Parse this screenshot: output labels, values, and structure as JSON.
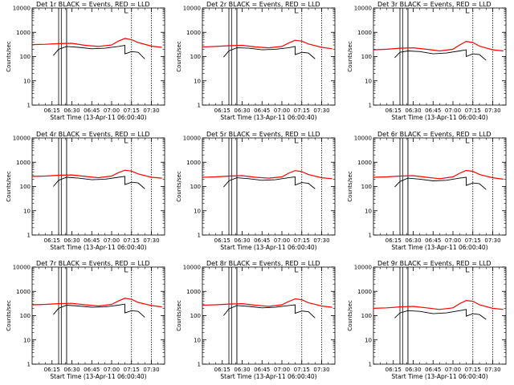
{
  "figure": {
    "background": "#ffffff",
    "events_color": "#000000",
    "lld_color": "#ff0000"
  },
  "chart_data": [
    {
      "type": "line",
      "title": "Det 1r BLACK = Events, RED = LLD",
      "xlabel": "Start Time (13-Apr-11 06:00:40)",
      "ylabel": "Counts/sec",
      "x_ticks": [
        "06:15",
        "06:30",
        "06:45",
        "07:00",
        "07:15",
        "07:30"
      ],
      "y_ticks": [
        "1",
        "10",
        "100",
        "1000",
        "10000"
      ],
      "x_range": [
        "06:00",
        "07:40"
      ],
      "ylim": [
        1,
        10000
      ],
      "y_scale": "log",
      "events_start": "06:16",
      "gap": [
        "06:20",
        "06:26"
      ],
      "events_step": "07:10",
      "markers": [
        "06:22",
        "06:26",
        "07:15",
        "07:30"
      ],
      "series": [
        {
          "name": "BLACK = Events",
          "x": [
            "06:16",
            "06:20",
            "06:26",
            "06:35",
            "06:45",
            "06:55",
            "07:05",
            "07:10",
            "07:10",
            "07:15",
            "07:20",
            "07:25"
          ],
          "values": [
            110,
            200,
            260,
            240,
            210,
            220,
            260,
            290,
            130,
            160,
            150,
            80
          ]
        },
        {
          "name": "RED = LLD",
          "x": [
            "06:00",
            "06:10",
            "06:20",
            "06:30",
            "06:40",
            "06:50",
            "07:00",
            "07:05",
            "07:10",
            "07:15",
            "07:20",
            "07:30",
            "07:38"
          ],
          "values": [
            310,
            320,
            340,
            350,
            290,
            260,
            300,
            430,
            560,
            500,
            380,
            270,
            240
          ]
        }
      ]
    },
    {
      "type": "line",
      "title": "Det 2r BLACK = Events, RED = LLD",
      "xlabel": "Start Time (13-Apr-11 06:00:40)",
      "ylabel": "Counts/sec",
      "x_ticks": [
        "06:15",
        "06:30",
        "06:45",
        "07:00",
        "07:15",
        "07:30"
      ],
      "y_ticks": [
        "1",
        "10",
        "100",
        "1000",
        "10000"
      ],
      "x_range": [
        "06:00",
        "07:40"
      ],
      "ylim": [
        1,
        10000
      ],
      "y_scale": "log",
      "events_start": "06:16",
      "gap": [
        "06:20",
        "06:26"
      ],
      "events_step": "07:10",
      "markers": [
        "06:22",
        "06:26",
        "07:15",
        "07:30"
      ],
      "series": [
        {
          "name": "BLACK = Events",
          "x": [
            "06:16",
            "06:20",
            "06:26",
            "06:35",
            "06:45",
            "06:55",
            "07:05",
            "07:10",
            "07:10",
            "07:15",
            "07:20",
            "07:25"
          ],
          "values": [
            95,
            170,
            230,
            220,
            190,
            200,
            230,
            260,
            120,
            150,
            140,
            80
          ]
        },
        {
          "name": "RED = LLD",
          "x": [
            "06:00",
            "06:10",
            "06:20",
            "06:30",
            "06:40",
            "06:50",
            "07:00",
            "07:05",
            "07:10",
            "07:15",
            "07:20",
            "07:30",
            "07:38"
          ],
          "values": [
            250,
            260,
            280,
            290,
            250,
            230,
            260,
            360,
            470,
            430,
            330,
            240,
            210
          ]
        }
      ]
    },
    {
      "type": "line",
      "title": "Det 3r BLACK = Events, RED = LLD",
      "xlabel": "Start Time (13-Apr-11 06:00:40)",
      "ylabel": "Counts/sec",
      "x_ticks": [
        "06:15",
        "06:30",
        "06:45",
        "07:00",
        "07:15",
        "07:30"
      ],
      "y_ticks": [
        "1",
        "10",
        "100",
        "1000",
        "10000"
      ],
      "x_range": [
        "06:00",
        "07:40"
      ],
      "ylim": [
        1,
        10000
      ],
      "y_scale": "log",
      "events_start": "06:16",
      "gap": [
        "06:20",
        "06:26"
      ],
      "events_step": "07:10",
      "markers": [
        "06:22",
        "06:26",
        "07:15",
        "07:30"
      ],
      "series": [
        {
          "name": "BLACK = Events",
          "x": [
            "06:16",
            "06:20",
            "06:26",
            "06:35",
            "06:45",
            "06:55",
            "07:05",
            "07:10",
            "07:10",
            "07:15",
            "07:20",
            "07:25"
          ],
          "values": [
            90,
            150,
            170,
            160,
            130,
            140,
            170,
            190,
            100,
            130,
            120,
            70
          ]
        },
        {
          "name": "RED = LLD",
          "x": [
            "06:00",
            "06:10",
            "06:20",
            "06:30",
            "06:40",
            "06:50",
            "07:00",
            "07:05",
            "07:10",
            "07:15",
            "07:20",
            "07:30",
            "07:38"
          ],
          "values": [
            190,
            200,
            220,
            230,
            200,
            170,
            200,
            300,
            420,
            380,
            270,
            190,
            170
          ]
        }
      ]
    },
    {
      "type": "line",
      "title": "Det 4r BLACK = Events, RED = LLD",
      "xlabel": "Start Time (13-Apr-11 06:00:40)",
      "ylabel": "Counts/sec",
      "x_ticks": [
        "06:15",
        "06:30",
        "06:45",
        "07:00",
        "07:15",
        "07:30"
      ],
      "y_ticks": [
        "1",
        "10",
        "100",
        "1000",
        "10000"
      ],
      "x_range": [
        "06:00",
        "07:40"
      ],
      "ylim": [
        1,
        10000
      ],
      "y_scale": "log",
      "events_start": "06:16",
      "gap": [
        "06:20",
        "06:26"
      ],
      "events_step": "07:10",
      "markers": [
        "06:22",
        "06:26",
        "07:15",
        "07:30"
      ],
      "series": [
        {
          "name": "BLACK = Events",
          "x": [
            "06:16",
            "06:20",
            "06:26",
            "06:35",
            "06:45",
            "06:55",
            "07:05",
            "07:10",
            "07:10",
            "07:15",
            "07:20",
            "07:25"
          ],
          "values": [
            100,
            180,
            240,
            220,
            190,
            200,
            240,
            260,
            120,
            150,
            140,
            80
          ]
        },
        {
          "name": "RED = LLD",
          "x": [
            "06:00",
            "06:10",
            "06:20",
            "06:30",
            "06:40",
            "06:50",
            "07:00",
            "07:05",
            "07:10",
            "07:15",
            "07:20",
            "07:30",
            "07:38"
          ],
          "values": [
            260,
            270,
            290,
            300,
            260,
            230,
            270,
            370,
            470,
            430,
            330,
            240,
            220
          ]
        }
      ]
    },
    {
      "type": "line",
      "title": "Det 5r BLACK = Events, RED = LLD",
      "xlabel": "Start Time (13-Apr-11 06:00:40)",
      "ylabel": "Counts/sec",
      "x_ticks": [
        "06:15",
        "06:30",
        "06:45",
        "07:00",
        "07:15",
        "07:30"
      ],
      "y_ticks": [
        "1",
        "10",
        "100",
        "1000",
        "10000"
      ],
      "x_range": [
        "06:00",
        "07:40"
      ],
      "ylim": [
        1,
        10000
      ],
      "y_scale": "log",
      "events_start": "06:16",
      "gap": [
        "06:20",
        "06:26"
      ],
      "events_step": "07:10",
      "markers": [
        "06:22",
        "06:26",
        "07:15",
        "07:30"
      ],
      "series": [
        {
          "name": "BLACK = Events",
          "x": [
            "06:16",
            "06:20",
            "06:26",
            "06:35",
            "06:45",
            "06:55",
            "07:05",
            "07:10",
            "07:10",
            "07:15",
            "07:20",
            "07:25"
          ],
          "values": [
            95,
            170,
            230,
            210,
            180,
            190,
            230,
            250,
            115,
            145,
            135,
            80
          ]
        },
        {
          "name": "RED = LLD",
          "x": [
            "06:00",
            "06:10",
            "06:20",
            "06:30",
            "06:40",
            "06:50",
            "07:00",
            "07:05",
            "07:10",
            "07:15",
            "07:20",
            "07:30",
            "07:38"
          ],
          "values": [
            240,
            250,
            270,
            280,
            240,
            220,
            250,
            350,
            450,
            410,
            310,
            230,
            210
          ]
        }
      ]
    },
    {
      "type": "line",
      "title": "Det 6r BLACK = Events, RED = LLD",
      "xlabel": "Start Time (13-Apr-11 06:00:40)",
      "ylabel": "Counts/sec",
      "x_ticks": [
        "06:15",
        "06:30",
        "06:45",
        "07:00",
        "07:15",
        "07:30"
      ],
      "y_ticks": [
        "1",
        "10",
        "100",
        "1000",
        "10000"
      ],
      "x_range": [
        "06:00",
        "07:40"
      ],
      "ylim": [
        1,
        10000
      ],
      "y_scale": "log",
      "events_start": "06:16",
      "gap": [
        "06:20",
        "06:26"
      ],
      "events_step": "07:10",
      "markers": [
        "06:22",
        "06:26",
        "07:15",
        "07:30"
      ],
      "series": [
        {
          "name": "BLACK = Events",
          "x": [
            "06:16",
            "06:20",
            "06:26",
            "06:35",
            "06:45",
            "06:55",
            "07:05",
            "07:10",
            "07:10",
            "07:15",
            "07:20",
            "07:25"
          ],
          "values": [
            95,
            160,
            220,
            200,
            170,
            180,
            220,
            240,
            110,
            140,
            130,
            75
          ]
        },
        {
          "name": "RED = LLD",
          "x": [
            "06:00",
            "06:10",
            "06:20",
            "06:30",
            "06:40",
            "06:50",
            "07:00",
            "07:05",
            "07:10",
            "07:15",
            "07:20",
            "07:30",
            "07:38"
          ],
          "values": [
            240,
            250,
            270,
            280,
            240,
            210,
            250,
            350,
            460,
            420,
            310,
            230,
            200
          ]
        }
      ]
    },
    {
      "type": "line",
      "title": "Det 7r BLACK = Events, RED = LLD",
      "xlabel": "Start Time (13-Apr-11 06:00:40)",
      "ylabel": "Counts/sec",
      "x_ticks": [
        "06:15",
        "06:30",
        "06:45",
        "07:00",
        "07:15",
        "07:30"
      ],
      "y_ticks": [
        "1",
        "10",
        "100",
        "1000",
        "10000"
      ],
      "x_range": [
        "06:00",
        "07:40"
      ],
      "ylim": [
        1,
        10000
      ],
      "y_scale": "log",
      "events_start": "06:16",
      "gap": [
        "06:20",
        "06:26"
      ],
      "events_step": "07:10",
      "markers": [
        "06:22",
        "06:26",
        "07:15",
        "07:30"
      ],
      "series": [
        {
          "name": "BLACK = Events",
          "x": [
            "06:16",
            "06:20",
            "06:26",
            "06:35",
            "06:45",
            "06:55",
            "07:05",
            "07:10",
            "07:10",
            "07:15",
            "07:20",
            "07:25"
          ],
          "values": [
            110,
            200,
            270,
            250,
            220,
            230,
            270,
            300,
            130,
            160,
            150,
            85
          ]
        },
        {
          "name": "RED = LLD",
          "x": [
            "06:00",
            "06:10",
            "06:20",
            "06:30",
            "06:40",
            "06:50",
            "07:00",
            "07:05",
            "07:10",
            "07:15",
            "07:20",
            "07:30",
            "07:38"
          ],
          "values": [
            280,
            290,
            310,
            320,
            280,
            250,
            290,
            400,
            520,
            470,
            350,
            260,
            230
          ]
        }
      ]
    },
    {
      "type": "line",
      "title": "Det 8r BLACK = Events, RED = LLD",
      "xlabel": "Start Time (13-Apr-11 06:00:40)",
      "ylabel": "Counts/sec",
      "x_ticks": [
        "06:15",
        "06:30",
        "06:45",
        "07:00",
        "07:15",
        "07:30"
      ],
      "y_ticks": [
        "1",
        "10",
        "100",
        "1000",
        "10000"
      ],
      "x_range": [
        "06:00",
        "07:40"
      ],
      "ylim": [
        1,
        10000
      ],
      "y_scale": "log",
      "events_start": "06:16",
      "gap": [
        "06:20",
        "06:26"
      ],
      "events_step": "07:10",
      "markers": [
        "06:22",
        "06:26",
        "07:15",
        "07:30"
      ],
      "series": [
        {
          "name": "BLACK = Events",
          "x": [
            "06:16",
            "06:20",
            "06:26",
            "06:35",
            "06:45",
            "06:55",
            "07:05",
            "07:10",
            "07:10",
            "07:15",
            "07:20",
            "07:25"
          ],
          "values": [
            100,
            190,
            260,
            240,
            210,
            220,
            260,
            280,
            125,
            155,
            145,
            80
          ]
        },
        {
          "name": "RED = LLD",
          "x": [
            "06:00",
            "06:10",
            "06:20",
            "06:30",
            "06:40",
            "06:50",
            "07:00",
            "07:05",
            "07:10",
            "07:15",
            "07:20",
            "07:30",
            "07:38"
          ],
          "values": [
            270,
            280,
            300,
            310,
            270,
            240,
            280,
            380,
            490,
            450,
            340,
            250,
            220
          ]
        }
      ]
    },
    {
      "type": "line",
      "title": "Det 9r BLACK = Events, RED = LLD",
      "xlabel": "Start Time (13-Apr-11 06:00:40)",
      "ylabel": "Counts/sec",
      "x_ticks": [
        "06:15",
        "06:30",
        "06:45",
        "07:00",
        "07:15",
        "07:30"
      ],
      "y_ticks": [
        "1",
        "10",
        "100",
        "1000",
        "10000"
      ],
      "x_range": [
        "06:00",
        "07:40"
      ],
      "ylim": [
        1,
        10000
      ],
      "y_scale": "log",
      "events_start": "06:16",
      "gap": [
        "06:20",
        "06:26"
      ],
      "events_step": "07:10",
      "markers": [
        "06:22",
        "06:26",
        "07:15",
        "07:30"
      ],
      "series": [
        {
          "name": "BLACK = Events",
          "x": [
            "06:16",
            "06:20",
            "06:26",
            "06:35",
            "06:45",
            "06:55",
            "07:05",
            "07:10",
            "07:10",
            "07:15",
            "07:20",
            "07:25"
          ],
          "values": [
            80,
            130,
            160,
            150,
            120,
            130,
            160,
            180,
            95,
            120,
            110,
            70
          ]
        },
        {
          "name": "RED = LLD",
          "x": [
            "06:00",
            "06:10",
            "06:20",
            "06:30",
            "06:40",
            "06:50",
            "07:00",
            "07:05",
            "07:10",
            "07:15",
            "07:20",
            "07:30",
            "07:38"
          ],
          "values": [
            200,
            210,
            230,
            240,
            210,
            180,
            210,
            310,
            420,
            390,
            280,
            200,
            180
          ]
        }
      ]
    }
  ]
}
